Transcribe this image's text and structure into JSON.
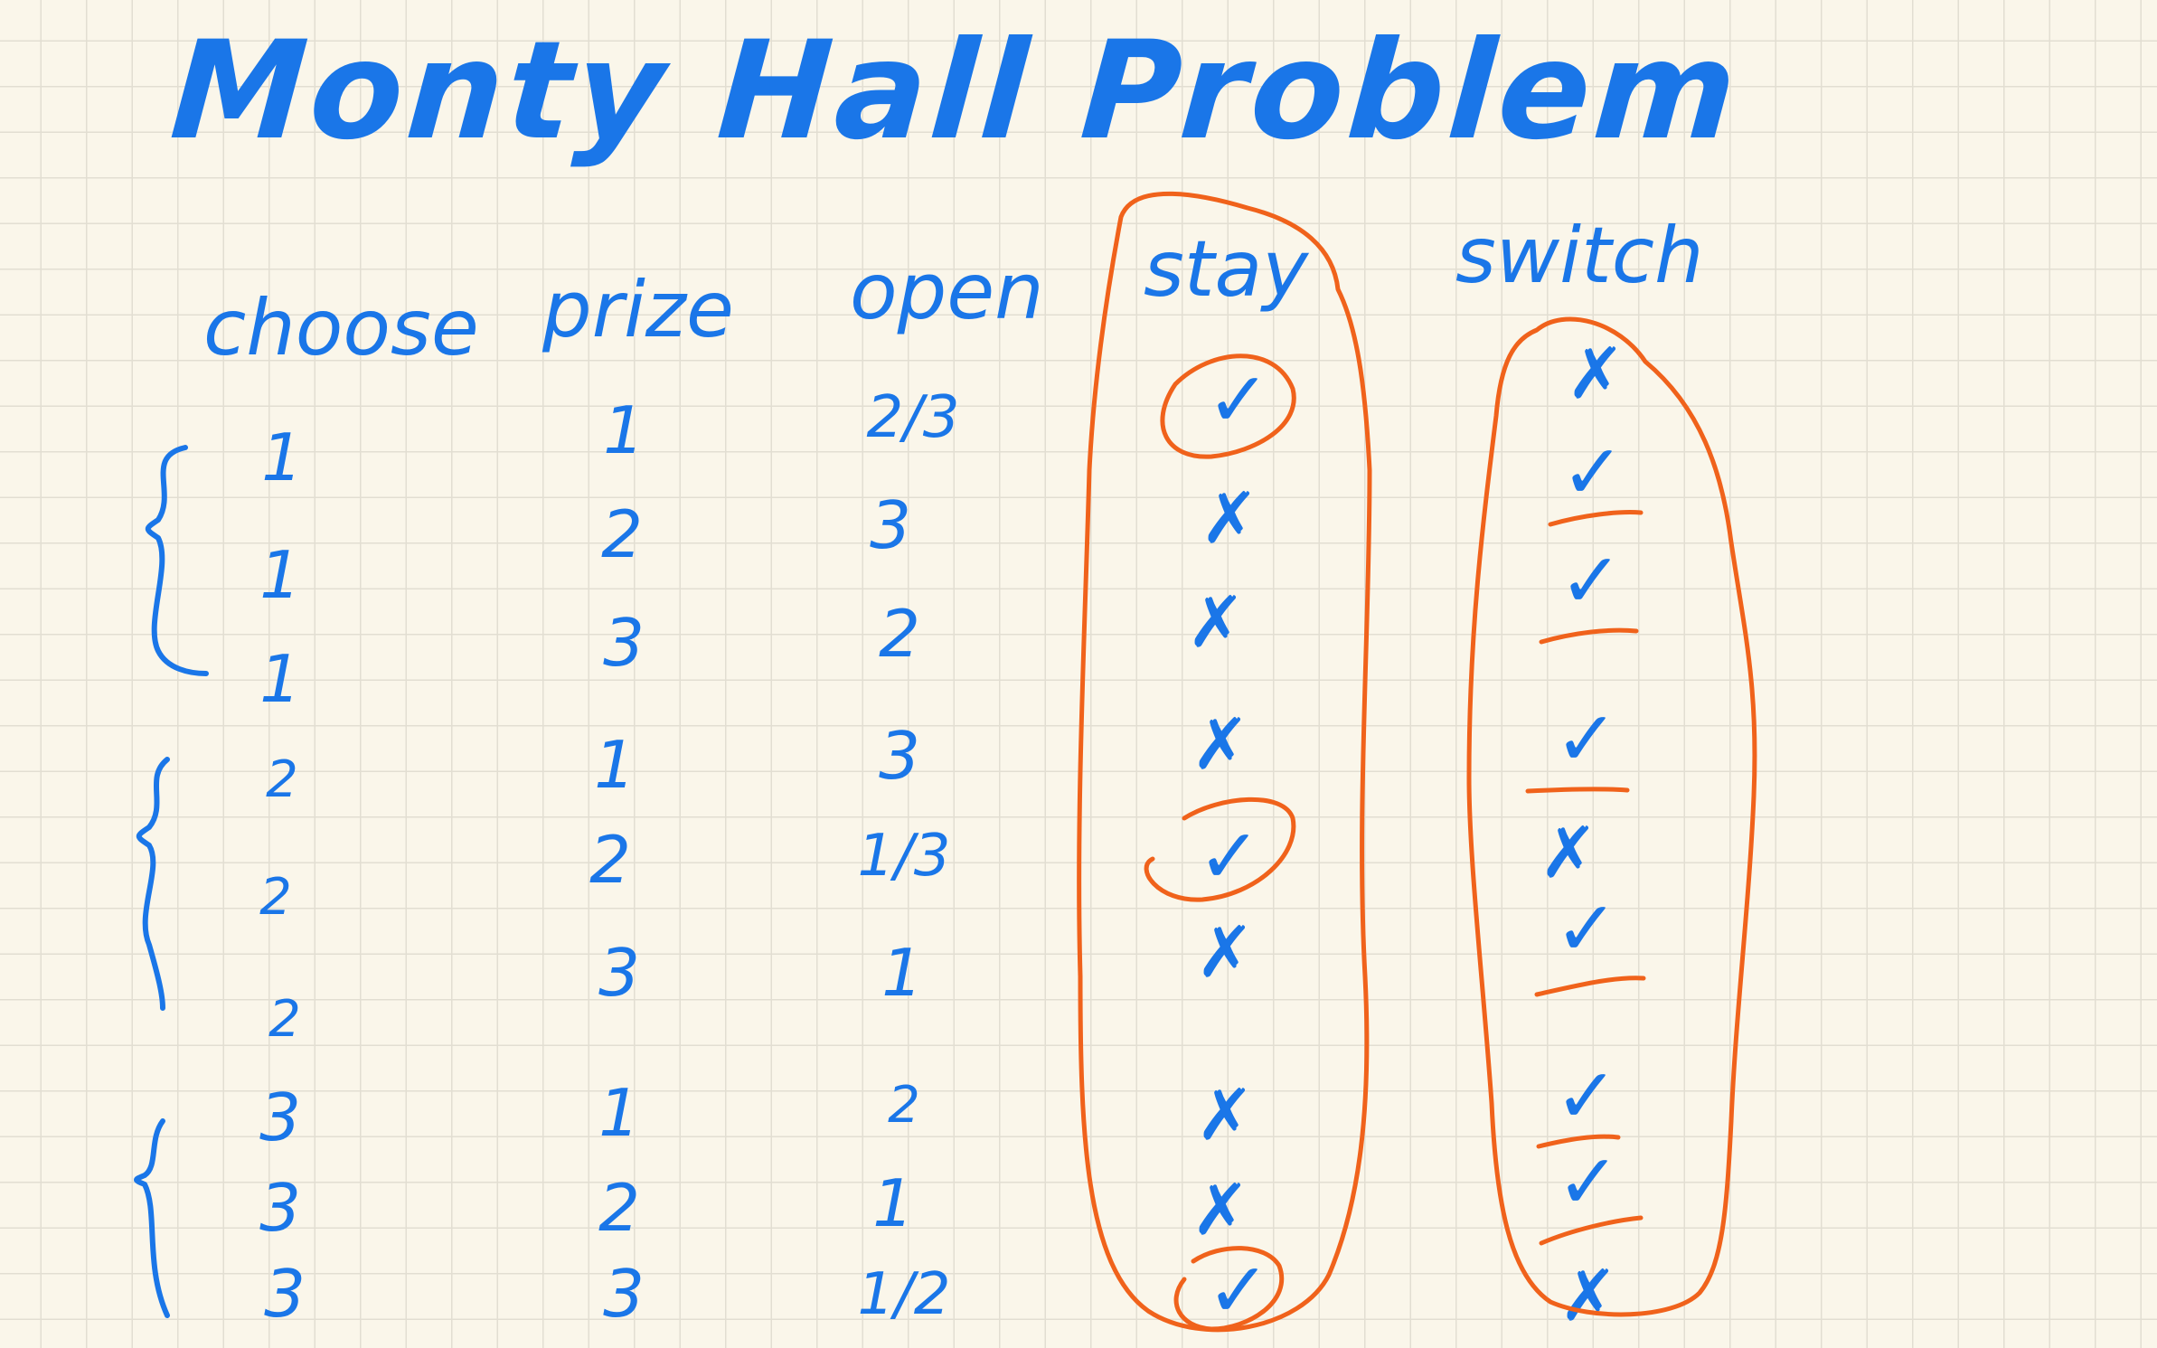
{
  "title": "Monty Hall Problem",
  "headers": {
    "choose": "choose",
    "prize": "prize",
    "open": "open",
    "stay": "stay",
    "switch": "switch"
  },
  "rows": [
    {
      "choose": "1",
      "prize": "1",
      "open": "2/3",
      "stay": "✓",
      "switch": "✗"
    },
    {
      "choose": "1",
      "prize": "2",
      "open": "3",
      "stay": "✗",
      "switch": "✓"
    },
    {
      "choose": "1",
      "prize": "3",
      "open": "2",
      "stay": "✗",
      "switch": "✓"
    },
    {
      "choose": "2",
      "prize": "1",
      "open": "3",
      "stay": "✗",
      "switch": "✓"
    },
    {
      "choose": "2",
      "prize": "2",
      "open": "1/3",
      "stay": "✓",
      "switch": "✗"
    },
    {
      "choose": "2",
      "prize": "3",
      "open": "1",
      "stay": "✗",
      "switch": "✓"
    },
    {
      "choose": "3",
      "prize": "1",
      "open": "2",
      "stay": "✗",
      "switch": "✓"
    },
    {
      "choose": "3",
      "prize": "2",
      "open": "1",
      "stay": "✗",
      "switch": "✓"
    },
    {
      "choose": "3",
      "prize": "3",
      "open": "1/2",
      "stay": "✓",
      "switch": "✗"
    }
  ],
  "colors": {
    "ink": "#1a76e8",
    "highlight": "#f0621b",
    "paper": "#faf6ea",
    "grid": "#e2ded2"
  }
}
